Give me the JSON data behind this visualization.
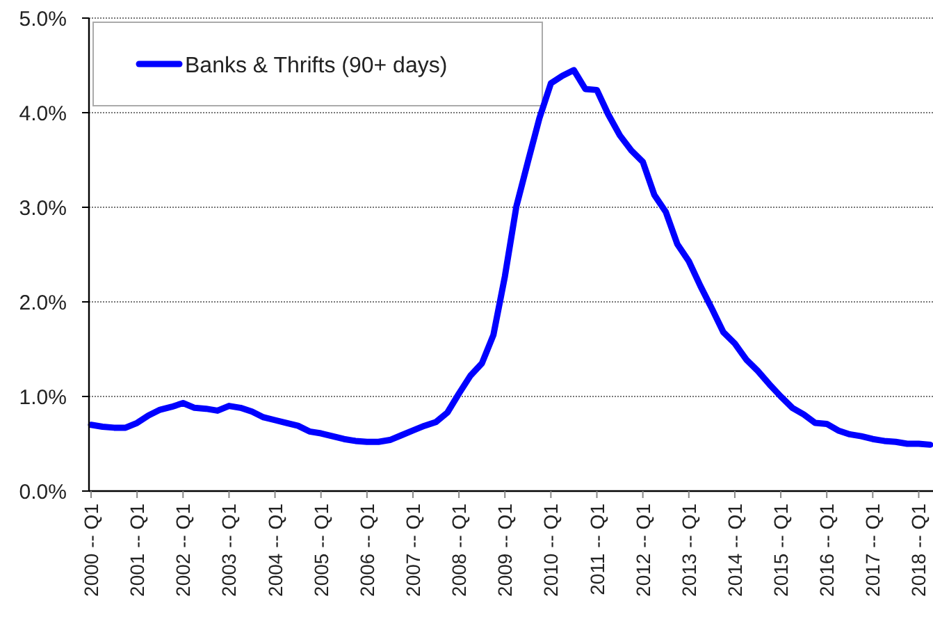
{
  "chart_data": {
    "type": "line",
    "categories": [
      "2000 -- Q1",
      null,
      null,
      null,
      "2001 -- Q1",
      null,
      null,
      null,
      "2002 -- Q1",
      null,
      null,
      null,
      "2003 -- Q1",
      null,
      null,
      null,
      "2004 -- Q1",
      null,
      null,
      null,
      "2005 -- Q1",
      null,
      null,
      null,
      "2006 -- Q1",
      null,
      null,
      null,
      "2007 -- Q1",
      null,
      null,
      null,
      "2008 -- Q1",
      null,
      null,
      null,
      "2009 -- Q1",
      null,
      null,
      null,
      "2010 -- Q1",
      null,
      null,
      null,
      "2011 -- Q1",
      null,
      null,
      null,
      "2012 -- Q1",
      null,
      null,
      null,
      "2013 -- Q1",
      null,
      null,
      null,
      "2014 -- Q1",
      null,
      null,
      null,
      "2015 -- Q1",
      null,
      null,
      null,
      "2016 -- Q1",
      null,
      null,
      null,
      "2017 -- Q1",
      null,
      null,
      null,
      "2018 -- Q1",
      null
    ],
    "series": [
      {
        "name": "Banks & Thrifts (90+ days)",
        "color": "#0000ff",
        "values": [
          0.7,
          0.68,
          0.67,
          0.67,
          0.72,
          0.8,
          0.86,
          0.89,
          0.93,
          0.88,
          0.87,
          0.85,
          0.9,
          0.88,
          0.84,
          0.78,
          0.75,
          0.72,
          0.69,
          0.63,
          0.61,
          0.58,
          0.55,
          0.53,
          0.52,
          0.52,
          0.54,
          0.59,
          0.64,
          0.69,
          0.73,
          0.83,
          1.03,
          1.22,
          1.35,
          1.65,
          2.27,
          3.01,
          3.48,
          3.94,
          4.31,
          4.39,
          4.45,
          4.25,
          4.24,
          3.98,
          3.76,
          3.6,
          3.48,
          3.13,
          2.95,
          2.61,
          2.43,
          2.17,
          1.93,
          1.68,
          1.56,
          1.39,
          1.27,
          1.13,
          1.0,
          0.88,
          0.81,
          0.72,
          0.71,
          0.64,
          0.6,
          0.58,
          0.55,
          0.53,
          0.52,
          0.5,
          0.5,
          0.49
        ]
      }
    ],
    "ylim": [
      0,
      5
    ],
    "yticks": [
      {
        "value": 0,
        "label": "0.0%"
      },
      {
        "value": 1,
        "label": "1.0%"
      },
      {
        "value": 2,
        "label": "2.0%"
      },
      {
        "value": 3,
        "label": "3.0%"
      },
      {
        "value": 4,
        "label": "4.0%"
      },
      {
        "value": 5,
        "label": "5.0%"
      }
    ],
    "grid": "y",
    "legend": "top left",
    "marker": "none",
    "line_style": "solid"
  }
}
